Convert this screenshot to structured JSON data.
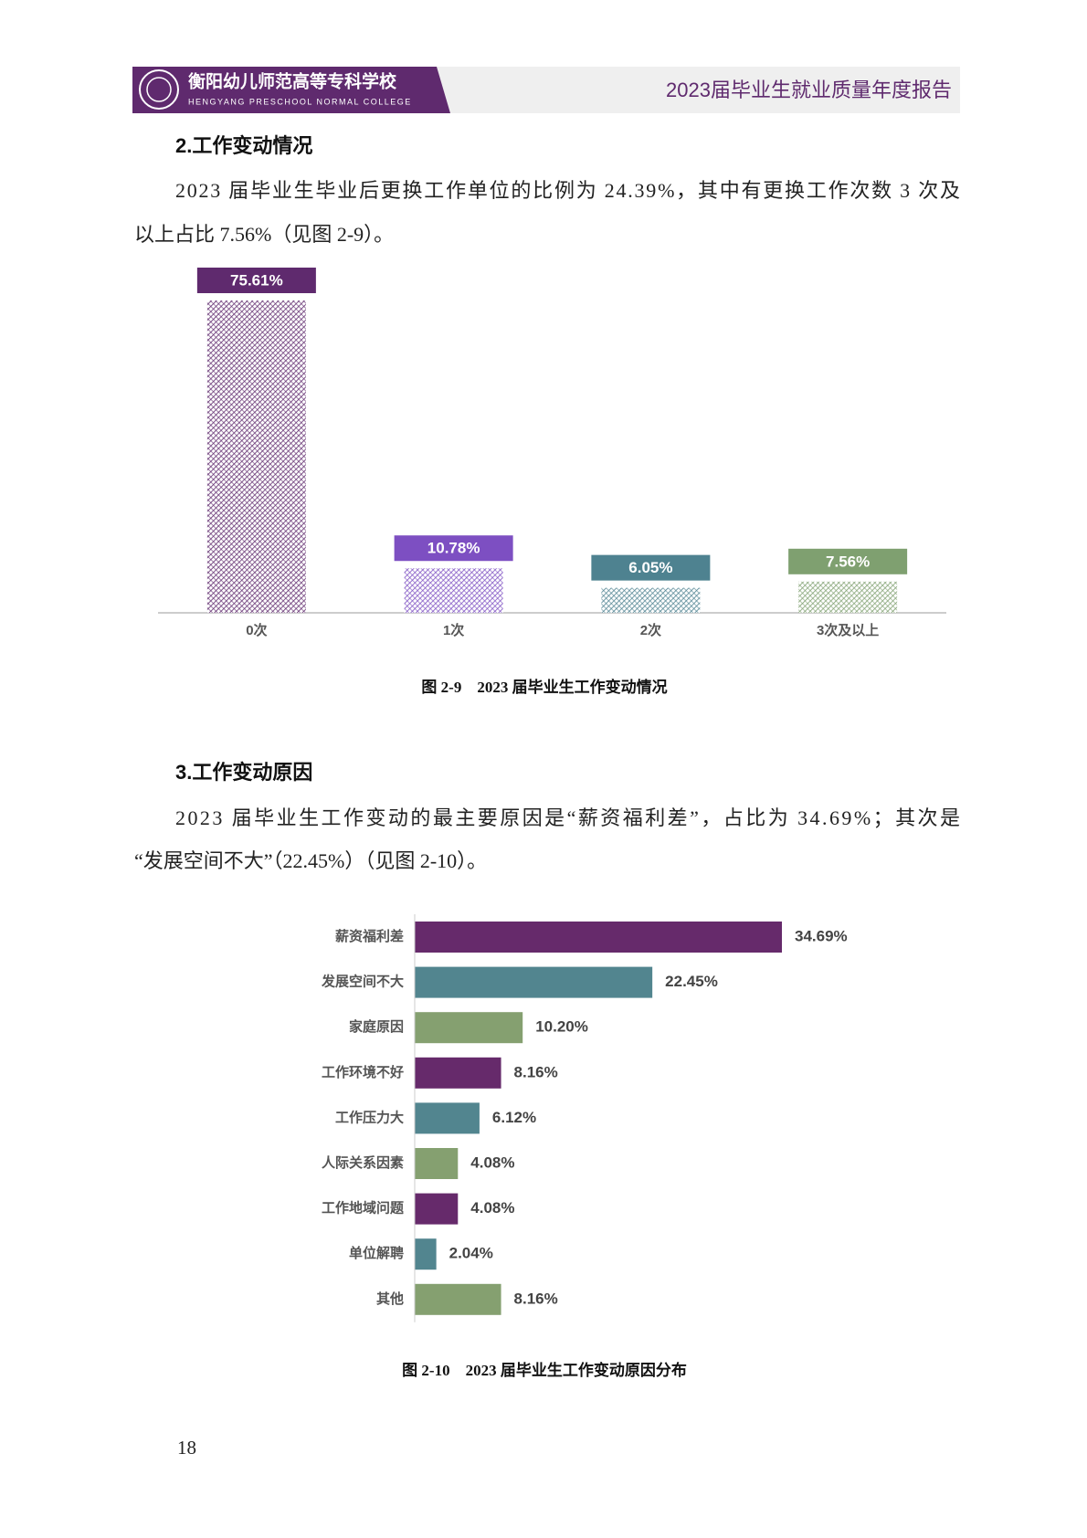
{
  "header": {
    "school": "衡阳幼儿师范高等专科学校",
    "school_en": "HENGYANG PRESCHOOL NORMAL COLLEGE",
    "report_title": "2023届毕业生就业质量年度报告"
  },
  "sections": [
    {
      "heading": "2.工作变动情况",
      "paragraph": [
        "2023 届毕业生毕业后更换工作单位的比例为 24.39%，其中有更换工作次数 3 次及",
        "以上占比 7.56%（见图 2-9）。"
      ],
      "caption": "图 2-9　2023 届毕业生工作变动情况"
    },
    {
      "heading": "3.工作变动原因",
      "paragraph": [
        "2023 届毕业生工作变动的最主要原因是“薪资福利差”，占比为 34.69%；其次是",
        "“发展空间不大”（22.45%）（见图 2-10）。"
      ],
      "caption": "图 2-10　2023 届毕业生工作变动原因分布"
    }
  ],
  "chart_data": [
    {
      "type": "bar",
      "categories": [
        "0次",
        "1次",
        "2次",
        "3次及以上"
      ],
      "values": [
        75.61,
        10.78,
        6.05,
        7.56
      ],
      "value_labels": [
        "75.61%",
        "10.78%",
        "6.05%",
        "7.56%"
      ],
      "colors": [
        "#5f2a6e",
        "#7d4fc2",
        "#4e8290",
        "#7fa070"
      ],
      "pattern": "hatch"
    },
    {
      "type": "hbar",
      "categories": [
        "薪资福利差",
        "发展空间不大",
        "家庭原因",
        "工作环境不好",
        "工作压力大",
        "人际关系因素",
        "工作地域问题",
        "单位解聘",
        "其他"
      ],
      "values": [
        34.69,
        22.45,
        10.2,
        8.16,
        6.12,
        4.08,
        4.08,
        2.04,
        8.16
      ],
      "value_labels": [
        "34.69%",
        "22.45%",
        "10.20%",
        "8.16%",
        "6.12%",
        "4.08%",
        "4.08%",
        "2.04%",
        "8.16%"
      ],
      "colors": [
        "#662a6b",
        "#52858f",
        "#85a070",
        "#662a6b",
        "#52858f",
        "#85a070",
        "#662a6b",
        "#52858f",
        "#85a070"
      ]
    }
  ],
  "page_number": "18"
}
